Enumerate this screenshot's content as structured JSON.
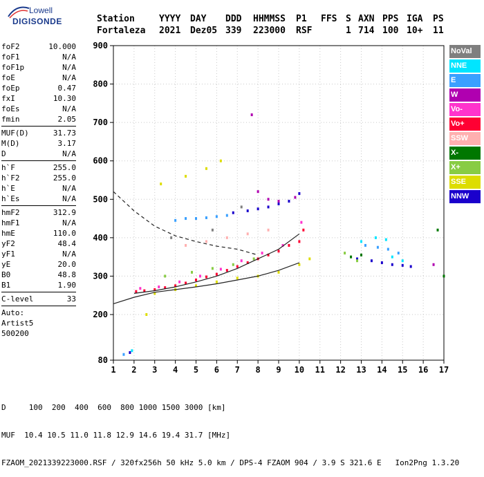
{
  "logo": {
    "line1": "Lowell",
    "line2": "DIGISONDE"
  },
  "header": {
    "labels": [
      "Station",
      "YYYY",
      "DAY",
      "DDD",
      "HHMMSS",
      "P1",
      "FFS",
      "S",
      "AXN",
      "PPS",
      "IGA",
      "PS"
    ],
    "values": [
      "Fortaleza",
      "2021",
      "Dez05",
      "339",
      "223000",
      "RSF",
      "",
      "1",
      "714",
      "100",
      "10+",
      "11"
    ]
  },
  "params": {
    "group1": [
      {
        "k": "foF2",
        "v": "10.000"
      },
      {
        "k": "foF1",
        "v": "N/A"
      },
      {
        "k": "foF1p",
        "v": "N/A"
      },
      {
        "k": "foE",
        "v": "N/A"
      },
      {
        "k": "foEp",
        "v": "0.47"
      },
      {
        "k": "fxI",
        "v": "10.30"
      },
      {
        "k": "foEs",
        "v": "N/A"
      },
      {
        "k": "fmin",
        "v": "2.05"
      }
    ],
    "group2": [
      {
        "k": "MUF(D)",
        "v": "31.73"
      },
      {
        "k": "M(D)",
        "v": "3.17"
      },
      {
        "k": "D",
        "v": "N/A"
      }
    ],
    "group3": [
      {
        "k": "h`F",
        "v": "255.0"
      },
      {
        "k": "h`F2",
        "v": "255.0"
      },
      {
        "k": "h`E",
        "v": "N/A"
      },
      {
        "k": "h`Es",
        "v": "N/A"
      }
    ],
    "group4": [
      {
        "k": "hmF2",
        "v": "312.9"
      },
      {
        "k": "hmF1",
        "v": "N/A"
      },
      {
        "k": "hmE",
        "v": "110.0"
      },
      {
        "k": "yF2",
        "v": "48.4"
      },
      {
        "k": "yF1",
        "v": "N/A"
      },
      {
        "k": "yE",
        "v": "20.0"
      },
      {
        "k": "B0",
        "v": "48.8"
      },
      {
        "k": "B1",
        "v": "1.90"
      }
    ],
    "group5": [
      {
        "k": "C-level",
        "v": "33"
      }
    ],
    "auto": [
      "Auto:",
      "Artist5",
      "500200"
    ]
  },
  "legend": [
    {
      "label": "NoVal",
      "color": "#7f7f7f"
    },
    {
      "label": "NNE",
      "color": "#00e5ff"
    },
    {
      "label": "E",
      "color": "#3aa0ff"
    },
    {
      "label": "W",
      "color": "#b000b0"
    },
    {
      "label": "Vo-",
      "color": "#ff33cc"
    },
    {
      "label": "Vo+",
      "color": "#ff0033"
    },
    {
      "label": "SSW",
      "color": "#ffb0b0"
    },
    {
      "label": "X-",
      "color": "#007700"
    },
    {
      "label": "X+",
      "color": "#88cc44"
    },
    {
      "label": "SSE",
      "color": "#dddd00"
    },
    {
      "label": "NNW",
      "color": "#1a00cc"
    }
  ],
  "bottom": {
    "line1": "D     100  200  400  600  800 1000 1500 3000 [km]",
    "line2": "MUF  10.4 10.5 11.0 11.8 12.9 14.6 19.4 31.7 [MHz]",
    "line3": "FZAOM_2021339223000.RSF / 320fx256h 50 kHz 5.0 km / DPS-4 FZAOM 904 / 3.9 S 321.6 E   Ion2Png 1.3.20"
  },
  "chart_data": {
    "type": "scatter",
    "title": "",
    "xlabel": "",
    "ylabel": "",
    "xlim": [
      1,
      17
    ],
    "ylim": [
      80,
      900
    ],
    "x_ticks": [
      "1",
      "2",
      "3",
      "4",
      "5",
      "6",
      "7",
      "8",
      "9",
      "10",
      "11",
      "12",
      "13",
      "14",
      "15",
      "16",
      "17"
    ],
    "y_ticks": [
      "80",
      "200",
      "300",
      "400",
      "500",
      "600",
      "700",
      "800",
      "900"
    ],
    "grid": true,
    "legend_position": "right",
    "series": [
      {
        "name": "Vo+",
        "color": "#ff0033",
        "points": [
          [
            2.1,
            260
          ],
          [
            2.5,
            262
          ],
          [
            3.0,
            265
          ],
          [
            3.5,
            270
          ],
          [
            4.0,
            275
          ],
          [
            4.5,
            282
          ],
          [
            5.0,
            290
          ],
          [
            5.5,
            298
          ],
          [
            6.0,
            305
          ],
          [
            6.5,
            315
          ],
          [
            7.0,
            325
          ],
          [
            7.5,
            335
          ],
          [
            8.0,
            345
          ],
          [
            8.5,
            355
          ],
          [
            9.0,
            365
          ],
          [
            9.5,
            380
          ],
          [
            10.0,
            390
          ],
          [
            10.2,
            420
          ]
        ]
      },
      {
        "name": "Vo-",
        "color": "#ff33cc",
        "points": [
          [
            2.3,
            268
          ],
          [
            3.2,
            272
          ],
          [
            4.2,
            285
          ],
          [
            5.2,
            300
          ],
          [
            6.2,
            318
          ],
          [
            7.2,
            340
          ],
          [
            8.2,
            360
          ],
          [
            9.2,
            380
          ],
          [
            10.1,
            440
          ]
        ]
      },
      {
        "name": "SSE",
        "color": "#dddd00",
        "points": [
          [
            3.0,
            255
          ],
          [
            4.0,
            265
          ],
          [
            5.0,
            275
          ],
          [
            6.0,
            285
          ],
          [
            7.0,
            295
          ],
          [
            8.0,
            300
          ],
          [
            9.0,
            310
          ],
          [
            10.0,
            330
          ],
          [
            10.5,
            345
          ],
          [
            3.3,
            540
          ],
          [
            4.5,
            560
          ],
          [
            5.5,
            580
          ],
          [
            6.2,
            600
          ],
          [
            2.6,
            200
          ]
        ]
      },
      {
        "name": "NNW",
        "color": "#1a00cc",
        "points": [
          [
            6.8,
            465
          ],
          [
            7.5,
            470
          ],
          [
            8.0,
            475
          ],
          [
            8.5,
            480
          ],
          [
            9.0,
            488
          ],
          [
            9.5,
            495
          ],
          [
            10.0,
            515
          ],
          [
            12.8,
            345
          ],
          [
            13.5,
            340
          ],
          [
            14.0,
            335
          ],
          [
            14.5,
            330
          ],
          [
            15.0,
            328
          ],
          [
            15.4,
            325
          ],
          [
            1.8,
            100
          ]
        ]
      },
      {
        "name": "E",
        "color": "#3aa0ff",
        "points": [
          [
            4.0,
            445
          ],
          [
            4.5,
            450
          ],
          [
            5.0,
            450
          ],
          [
            5.5,
            452
          ],
          [
            6.0,
            455
          ],
          [
            6.5,
            458
          ],
          [
            13.2,
            380
          ],
          [
            13.8,
            375
          ],
          [
            14.3,
            370
          ],
          [
            14.8,
            360
          ],
          [
            1.5,
            95
          ]
        ]
      },
      {
        "name": "NNE",
        "color": "#00e5ff",
        "points": [
          [
            13.0,
            390
          ],
          [
            13.7,
            400
          ],
          [
            14.2,
            395
          ],
          [
            14.5,
            350
          ],
          [
            15.0,
            340
          ],
          [
            1.9,
            105
          ]
        ]
      },
      {
        "name": "X-",
        "color": "#007700",
        "points": [
          [
            12.5,
            350
          ],
          [
            13.0,
            355
          ],
          [
            16.7,
            420
          ],
          [
            17.0,
            300
          ]
        ]
      },
      {
        "name": "X+",
        "color": "#88cc44",
        "points": [
          [
            3.5,
            300
          ],
          [
            4.8,
            310
          ],
          [
            5.8,
            320
          ],
          [
            6.8,
            330
          ],
          [
            7.8,
            345
          ],
          [
            12.2,
            360
          ],
          [
            12.8,
            340
          ]
        ]
      },
      {
        "name": "W",
        "color": "#b000b0",
        "points": [
          [
            7.7,
            720
          ],
          [
            8.0,
            520
          ],
          [
            8.5,
            500
          ],
          [
            9.0,
            495
          ],
          [
            9.8,
            505
          ],
          [
            16.5,
            330
          ]
        ]
      },
      {
        "name": "SSW",
        "color": "#ffb0b0",
        "points": [
          [
            4.5,
            380
          ],
          [
            5.5,
            390
          ],
          [
            6.5,
            400
          ],
          [
            7.5,
            410
          ],
          [
            8.5,
            420
          ]
        ]
      },
      {
        "name": "NoVal",
        "color": "#7f7f7f",
        "points": [
          [
            3.8,
            400
          ],
          [
            5.8,
            420
          ],
          [
            7.2,
            480
          ]
        ]
      }
    ],
    "curves": [
      {
        "style": "solid",
        "points": [
          [
            1,
            228
          ],
          [
            2,
            245
          ],
          [
            3,
            258
          ],
          [
            4,
            265
          ],
          [
            5,
            272
          ],
          [
            6,
            280
          ],
          [
            7,
            290
          ],
          [
            8,
            300
          ],
          [
            9,
            315
          ],
          [
            10,
            335
          ]
        ]
      },
      {
        "style": "solid",
        "points": [
          [
            2,
            255
          ],
          [
            3,
            262
          ],
          [
            4,
            272
          ],
          [
            5,
            285
          ],
          [
            6,
            300
          ],
          [
            7,
            320
          ],
          [
            8,
            345
          ],
          [
            9,
            370
          ],
          [
            10,
            410
          ]
        ]
      },
      {
        "style": "dashed",
        "points": [
          [
            1,
            520
          ],
          [
            2,
            470
          ],
          [
            3,
            430
          ],
          [
            4,
            405
          ],
          [
            5,
            390
          ],
          [
            6,
            378
          ],
          [
            7,
            370
          ],
          [
            8,
            355
          ]
        ]
      }
    ]
  }
}
